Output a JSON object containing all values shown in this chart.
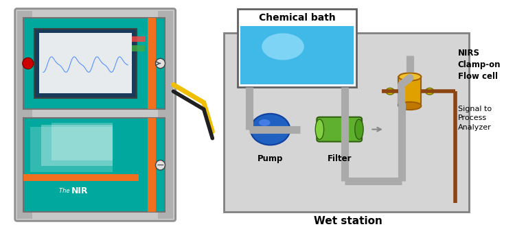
{
  "bg_color": "#f0f0f0",
  "teal": "#00a89d",
  "orange_line": "#f07020",
  "gray_frame": "#b0b0b0",
  "dark_gray": "#606060",
  "light_gray": "#d8d8d8",
  "wet_station_bg": "#d0d0d0",
  "bath_blue_light": "#7fd8f8",
  "bath_blue_dark": "#40b8e8",
  "pump_blue": "#2060c0",
  "filter_green": "#60b030",
  "flow_cell_gold": "#e0a000",
  "pipe_gray": "#a0a0a0",
  "signal_brown": "#8b4513",
  "title_chemical_bath": "Chemical bath",
  "title_wet_station": "Wet station",
  "label_nirs": "NIRS\nClamp-on\nFlow cell",
  "label_pump": "Pump",
  "label_filter": "Filter",
  "label_signal": "Signal to\nProcess\nAnalyzer"
}
